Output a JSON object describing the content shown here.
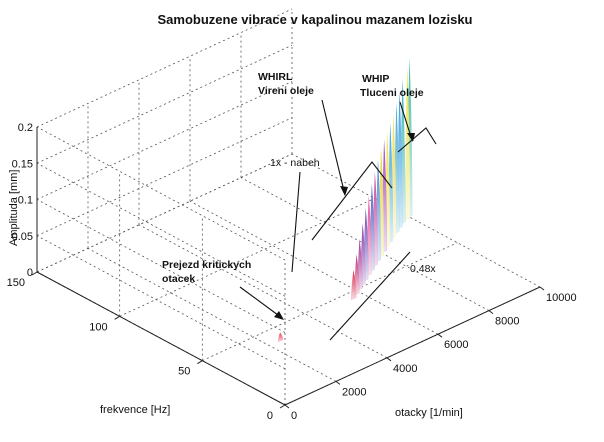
{
  "chart_data": {
    "type": "waterfall-3d",
    "title": "Samobuzene vibrace v kapalinou mazanem lozisku",
    "xlabel": "otacky [1/min]",
    "ylabel": "frekvence [Hz]",
    "zlabel": "Amplituda [mm]",
    "x_ticks": [
      "0",
      "2000",
      "4000",
      "6000",
      "8000",
      "10000"
    ],
    "y_ticks": [
      "0",
      "50",
      "100",
      "150"
    ],
    "z_ticks": [
      "0",
      "0.05",
      "0.1",
      "0.15",
      "0.2"
    ],
    "xlim": [
      0,
      10000
    ],
    "ylim": [
      0,
      150
    ],
    "zlim": [
      0,
      0.2
    ],
    "grid": true,
    "annotations": {
      "whirl_line1": "WHIRL",
      "whirl_line2": "Vireni oleje",
      "whip_line1": "WHIP",
      "whip_line2": "Tluceni oleje",
      "runup": "1x - nabeh",
      "critical_line1": "Prejezd kritickych",
      "critical_line2": "otacek",
      "ratio": "0.48x"
    },
    "peaks": [
      {
        "rpm": 2400,
        "freq": 40,
        "amp": 0.012,
        "color": "#e8304a"
      },
      {
        "rpm": 5600,
        "freq": 45,
        "amp": 0.04,
        "color": "#d81e3c"
      },
      {
        "rpm": 5850,
        "freq": 47,
        "amp": 0.055,
        "color": "#c0206c"
      },
      {
        "rpm": 6100,
        "freq": 49,
        "amp": 0.07,
        "color": "#a0248c"
      },
      {
        "rpm": 6350,
        "freq": 51,
        "amp": 0.085,
        "color": "#7a2aa0"
      },
      {
        "rpm": 6600,
        "freq": 53,
        "amp": 0.1,
        "color": "#5e3ab0"
      },
      {
        "rpm": 6850,
        "freq": 55,
        "amp": 0.11,
        "color": "#e23a8c"
      },
      {
        "rpm": 7100,
        "freq": 57,
        "amp": 0.12,
        "color": "#3b4fc0"
      },
      {
        "rpm": 7350,
        "freq": 59,
        "amp": 0.13,
        "color": "#c62d8e"
      },
      {
        "rpm": 7600,
        "freq": 61,
        "amp": 0.14,
        "color": "#2f7fd0"
      },
      {
        "rpm": 7850,
        "freq": 63,
        "amp": 0.15,
        "color": "#e0d020"
      },
      {
        "rpm": 8100,
        "freq": 65,
        "amp": 0.155,
        "color": "#9a2fb8"
      },
      {
        "rpm": 8350,
        "freq": 67,
        "amp": 0.16,
        "color": "#f0e030"
      },
      {
        "rpm": 8600,
        "freq": 69,
        "amp": 0.165,
        "color": "#2a9cd8"
      },
      {
        "rpm": 8850,
        "freq": 71,
        "amp": 0.17,
        "color": "#e8d840"
      },
      {
        "rpm": 9100,
        "freq": 73,
        "amp": 0.18,
        "color": "#30a0c8"
      },
      {
        "rpm": 9350,
        "freq": 75,
        "amp": 0.19,
        "color": "#2090e0"
      },
      {
        "rpm": 9600,
        "freq": 77,
        "amp": 0.2,
        "color": "#20a8b0"
      },
      {
        "rpm": 9850,
        "freq": 78,
        "amp": 0.21,
        "color": "#e8e030"
      },
      {
        "rpm": 10000,
        "freq": 79,
        "amp": 0.22,
        "color": "#28b0a0"
      }
    ]
  }
}
